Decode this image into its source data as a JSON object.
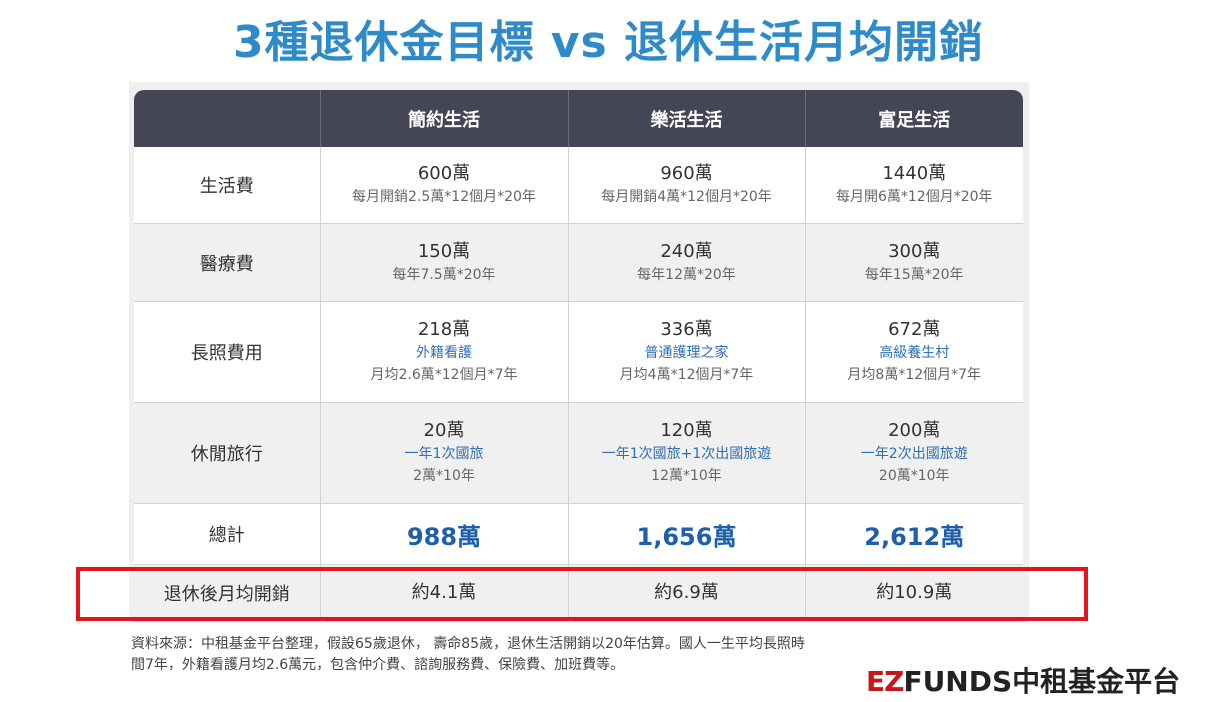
{
  "title": "3種退休金目標 vs 退休生活月均開銷",
  "header": {
    "col0": "",
    "col1": "簡約生活",
    "col2": "樂活生活",
    "col3": "富足生活"
  },
  "rows": {
    "living": {
      "label": "生活費",
      "c1_main": "600萬",
      "c1_sub": "每月開銷2.5萬*12個月*20年",
      "c2_main": "960萬",
      "c2_sub": "每月開銷4萬*12個月*20年",
      "c3_main": "1440萬",
      "c3_sub": "每月開6萬*12個月*20年"
    },
    "medical": {
      "label": "醫療費",
      "c1_main": "150萬",
      "c1_sub": "每年7.5萬*20年",
      "c2_main": "240萬",
      "c2_sub": "每年12萬*20年",
      "c3_main": "300萬",
      "c3_sub": "每年15萬*20年"
    },
    "longterm": {
      "label": "長照費用",
      "c1_main": "218萬",
      "c1_blue": "外籍看護",
      "c1_sub": "月均2.6萬*12個月*7年",
      "c2_main": "336萬",
      "c2_blue": "普通護理之家",
      "c2_sub": "月均4萬*12個月*7年",
      "c3_main": "672萬",
      "c3_blue": "高級養生村",
      "c3_sub": "月均8萬*12個月*7年"
    },
    "leisure": {
      "label": "休閒旅行",
      "c1_main": "20萬",
      "c1_blue": "一年1次國旅",
      "c1_sub": "2萬*10年",
      "c2_main": "120萬",
      "c2_blue": "一年1次國旅+1次出國旅遊",
      "c2_sub": "12萬*10年",
      "c3_main": "200萬",
      "c3_blue": "一年2次出國旅遊",
      "c3_sub": "20萬*10年"
    },
    "total": {
      "label": "總計",
      "c1": "988萬",
      "c2": "1,656萬",
      "c3": "2,612萬"
    },
    "monthly": {
      "label": "退休後月均開銷",
      "c1": "約4.1萬",
      "c2": "約6.9萬",
      "c3": "約10.9萬"
    }
  },
  "note_line1": "資料來源：中租基金平台整理，假設65歲退休， 壽命85歲，退休生活開銷以20年估算。國人一生平均長照時",
  "note_line2": "間7年，外籍看護月均2.6萬元，包含仲介費、諮詢服務費、保險費、加班費等。",
  "brand": {
    "ez": "EZ",
    "funds": "FUNDS",
    "name": "中租基金平台"
  },
  "colors": {
    "title": "#2f8ac8",
    "header_bg": "#444655",
    "highlight": "#e3141b",
    "total": "#1f5fa8"
  }
}
